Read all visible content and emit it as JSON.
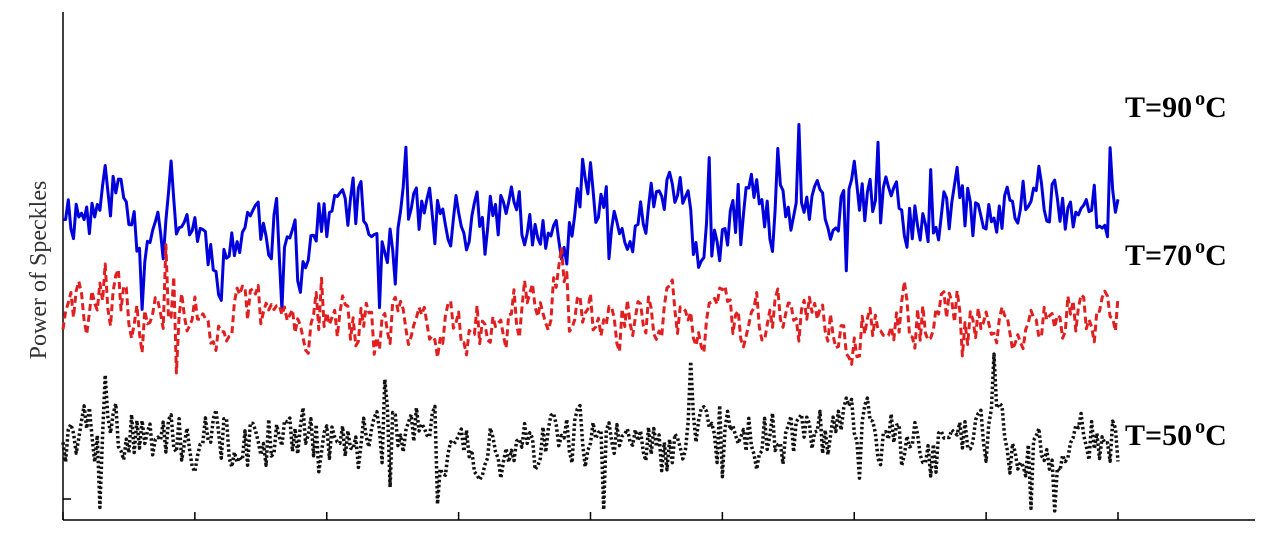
{
  "chart_data": {
    "type": "line",
    "title": "",
    "xlabel": "",
    "ylabel": "Power of Speckles",
    "grid": false,
    "x_tick_count": 9,
    "x_tick_labels": [],
    "y_tick_labels": [],
    "series": [
      {
        "name": "T=90 °C",
        "label_prefix": "T=90",
        "label_unit": "o",
        "label_suffix": "C",
        "color": "#0000dd",
        "style": "solid",
        "samples": 400,
        "points": [
          [
            0,
            0.62
          ],
          [
            10,
            0.6
          ],
          [
            20,
            0.66
          ],
          [
            30,
            0.55
          ],
          [
            40,
            0.62
          ],
          [
            50,
            0.58
          ],
          [
            60,
            0.5
          ],
          [
            70,
            0.6
          ],
          [
            80,
            0.57
          ],
          [
            90,
            0.52
          ],
          [
            100,
            0.6
          ],
          [
            110,
            0.63
          ],
          [
            120,
            0.54
          ],
          [
            130,
            0.62
          ],
          [
            140,
            0.59
          ],
          [
            150,
            0.6
          ],
          [
            160,
            0.57
          ],
          [
            170,
            0.64
          ],
          [
            180,
            0.53
          ],
          [
            190,
            0.55
          ],
          [
            200,
            0.65
          ],
          [
            210,
            0.6
          ],
          [
            220,
            0.59
          ],
          [
            230,
            0.67
          ],
          [
            240,
            0.55
          ],
          [
            250,
            0.54
          ],
          [
            260,
            0.62
          ],
          [
            270,
            0.58
          ],
          [
            280,
            0.63
          ],
          [
            290,
            0.58
          ],
          [
            300,
            0.64
          ],
          [
            310,
            0.62
          ],
          [
            320,
            0.6
          ],
          [
            330,
            0.58
          ],
          [
            340,
            0.63
          ],
          [
            350,
            0.58
          ],
          [
            360,
            0.61
          ],
          [
            370,
            0.66
          ],
          [
            380,
            0.62
          ],
          [
            390,
            0.61
          ],
          [
            400,
            0.63
          ]
        ]
      },
      {
        "name": "T=70 °C",
        "label_prefix": "T=70",
        "label_unit": "o",
        "label_suffix": "C",
        "color": "#e02020",
        "style": "dashed",
        "samples": 400,
        "points": [
          [
            0,
            0.4
          ],
          [
            10,
            0.42
          ],
          [
            20,
            0.44
          ],
          [
            30,
            0.38
          ],
          [
            40,
            0.43
          ],
          [
            50,
            0.4
          ],
          [
            60,
            0.38
          ],
          [
            70,
            0.42
          ],
          [
            80,
            0.4
          ],
          [
            90,
            0.39
          ],
          [
            100,
            0.41
          ],
          [
            110,
            0.38
          ],
          [
            120,
            0.39
          ],
          [
            130,
            0.41
          ],
          [
            140,
            0.37
          ],
          [
            150,
            0.39
          ],
          [
            160,
            0.38
          ],
          [
            170,
            0.4
          ],
          [
            180,
            0.45
          ],
          [
            190,
            0.42
          ],
          [
            200,
            0.41
          ],
          [
            210,
            0.39
          ],
          [
            220,
            0.4
          ],
          [
            230,
            0.42
          ],
          [
            240,
            0.38
          ],
          [
            250,
            0.4
          ],
          [
            260,
            0.39
          ],
          [
            270,
            0.43
          ],
          [
            280,
            0.4
          ],
          [
            290,
            0.38
          ],
          [
            300,
            0.37
          ],
          [
            310,
            0.39
          ],
          [
            320,
            0.4
          ],
          [
            330,
            0.39
          ],
          [
            340,
            0.42
          ],
          [
            350,
            0.4
          ],
          [
            360,
            0.38
          ],
          [
            370,
            0.39
          ],
          [
            380,
            0.41
          ],
          [
            390,
            0.38
          ],
          [
            400,
            0.4
          ]
        ]
      },
      {
        "name": "T=50 °C",
        "label_prefix": "T=50",
        "label_unit": "o",
        "label_suffix": "C",
        "color": "#111111",
        "style": "dotted",
        "samples": 400,
        "points": [
          [
            0,
            0.18
          ],
          [
            10,
            0.17
          ],
          [
            20,
            0.16
          ],
          [
            30,
            0.18
          ],
          [
            40,
            0.15
          ],
          [
            50,
            0.16
          ],
          [
            60,
            0.17
          ],
          [
            70,
            0.15
          ],
          [
            80,
            0.17
          ],
          [
            90,
            0.16
          ],
          [
            100,
            0.15
          ],
          [
            110,
            0.14
          ],
          [
            120,
            0.16
          ],
          [
            130,
            0.18
          ],
          [
            140,
            0.16
          ],
          [
            150,
            0.17
          ],
          [
            160,
            0.15
          ],
          [
            170,
            0.14
          ],
          [
            180,
            0.15
          ],
          [
            190,
            0.17
          ],
          [
            200,
            0.16
          ],
          [
            210,
            0.19
          ],
          [
            220,
            0.15
          ],
          [
            230,
            0.14
          ],
          [
            240,
            0.16
          ],
          [
            250,
            0.15
          ],
          [
            260,
            0.17
          ],
          [
            270,
            0.15
          ],
          [
            280,
            0.14
          ],
          [
            290,
            0.17
          ],
          [
            300,
            0.2
          ],
          [
            310,
            0.16
          ],
          [
            320,
            0.14
          ],
          [
            330,
            0.13
          ],
          [
            340,
            0.17
          ],
          [
            350,
            0.18
          ],
          [
            360,
            0.15
          ],
          [
            370,
            0.16
          ],
          [
            380,
            0.15
          ],
          [
            390,
            0.17
          ],
          [
            400,
            0.16
          ]
        ]
      }
    ]
  }
}
